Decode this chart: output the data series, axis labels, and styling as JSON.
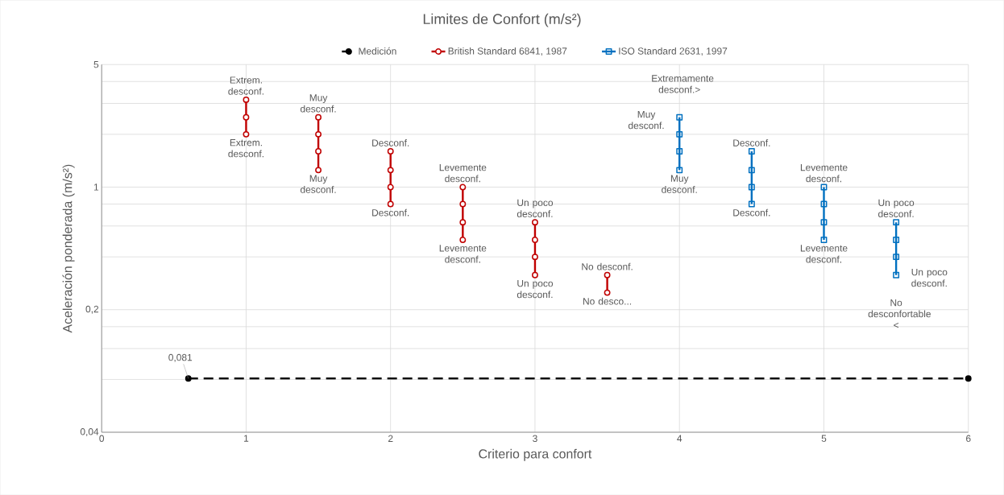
{
  "chart_data": {
    "type": "line",
    "title": "Limites de Confort (m/s²)",
    "xlabel": "Criterio para confort",
    "ylabel": "Aceleración ponderada (m/s²)",
    "log": "y",
    "grid": true,
    "legend": "top",
    "xlim": [
      0,
      6
    ],
    "xticks": [
      0,
      1,
      2,
      3,
      4,
      5,
      6
    ],
    "ylim": [
      0.04,
      5
    ],
    "yticks": [
      {
        "value": 0.04,
        "label": "0,04"
      },
      {
        "value": 0.08,
        "label": null
      },
      {
        "value": 0.12,
        "label": null
      },
      {
        "value": 0.16,
        "label": null
      },
      {
        "value": 0.2,
        "label": "0,2"
      },
      {
        "value": 0.4,
        "label": null
      },
      {
        "value": 0.6,
        "label": null
      },
      {
        "value": 0.8,
        "label": null
      },
      {
        "value": 1,
        "label": "1"
      },
      {
        "value": 2,
        "label": null
      },
      {
        "value": 3,
        "label": null
      },
      {
        "value": 4,
        "label": null
      },
      {
        "value": 5,
        "label": "5"
      }
    ],
    "series": [
      {
        "name": "Medición",
        "color": "#000000",
        "marker": "circle",
        "line_style": "dashed",
        "x": [
          0.6,
          6
        ],
        "values": [
          0.081,
          0.081
        ],
        "value_labels": [
          "0,081",
          null
        ]
      },
      {
        "name": "British Standard 6841, 1987",
        "color": "#c00000",
        "marker": "circle",
        "line_style": "solid",
        "x": [
          1,
          1,
          1,
          1.25,
          1.5,
          1.5,
          1.5,
          1.5,
          1.75,
          2,
          2,
          2,
          2,
          2.25,
          2.5,
          2.5,
          2.5,
          2.5,
          2.75,
          3,
          3,
          3,
          3,
          3.25,
          3.5,
          3.5
        ],
        "values": [
          3.15,
          2.5,
          2,
          null,
          2.5,
          2,
          1.6,
          1.25,
          null,
          1.6,
          1.25,
          1,
          0.8,
          null,
          1,
          0.8,
          0.63,
          0.5,
          null,
          0.63,
          0.5,
          0.4,
          0.315,
          null,
          0.315,
          0.25
        ]
      },
      {
        "name": "ISO Standard 2631, 1997",
        "color": "#0070c0",
        "marker": "square",
        "line_style": "solid",
        "x": [
          4,
          4,
          4,
          4,
          4.25,
          4.5,
          4.5,
          4.5,
          4.5,
          4.75,
          5,
          5,
          5,
          5,
          5.25,
          5.5,
          5.5,
          5.5,
          5.5
        ],
        "values": [
          2.5,
          2,
          1.6,
          1.25,
          null,
          1.6,
          1.25,
          1,
          0.8,
          null,
          1,
          0.8,
          0.63,
          0.5,
          null,
          0.63,
          0.5,
          0.4,
          0.315
        ]
      }
    ],
    "annotations": [
      {
        "text": "Extrem. desconf.",
        "x": 1,
        "y": 3.15
      },
      {
        "text": "Extrem. desconf.",
        "x": 1,
        "y": 2
      },
      {
        "text": "Muy desconf.",
        "x": 1.5,
        "y": 2.5
      },
      {
        "text": "Muy desconf.",
        "x": 1.5,
        "y": 1.25
      },
      {
        "text": "Desconf.",
        "x": 2,
        "y": 1.6
      },
      {
        "text": "Desconf.",
        "x": 2,
        "y": 0.8
      },
      {
        "text": "Levemente desconf.",
        "x": 2.5,
        "y": 1
      },
      {
        "text": "Levemente desconf.",
        "x": 2.5,
        "y": 0.5
      },
      {
        "text": "Un poco desconf.",
        "x": 3,
        "y": 0.63
      },
      {
        "text": "Un poco desconf.",
        "x": 3,
        "y": 0.315
      },
      {
        "text": "No desconf.",
        "x": 3.5,
        "y": 0.315
      },
      {
        "text": "No desco...",
        "x": 3.5,
        "y": 0.25
      },
      {
        "text": "Extremamente desconf.>",
        "x": 4,
        "y": 2.5
      },
      {
        "text": "Muy desconf.",
        "x": 4,
        "y": 2.5
      },
      {
        "text": "Muy desconf.",
        "x": 4,
        "y": 1.25
      },
      {
        "text": "Desconf.",
        "x": 4.5,
        "y": 1.6
      },
      {
        "text": "Desconf.",
        "x": 4.5,
        "y": 0.8
      },
      {
        "text": "Levemente desconf.",
        "x": 5,
        "y": 1
      },
      {
        "text": "Levemente desconf.",
        "x": 5,
        "y": 0.5
      },
      {
        "text": "Un poco desconf.",
        "x": 5.5,
        "y": 0.63
      },
      {
        "text": "No desconfortable <",
        "x": 5.5,
        "y": 0.315
      },
      {
        "text": "Un poco desconf.",
        "x": 5.5,
        "y": 0.315
      }
    ]
  }
}
